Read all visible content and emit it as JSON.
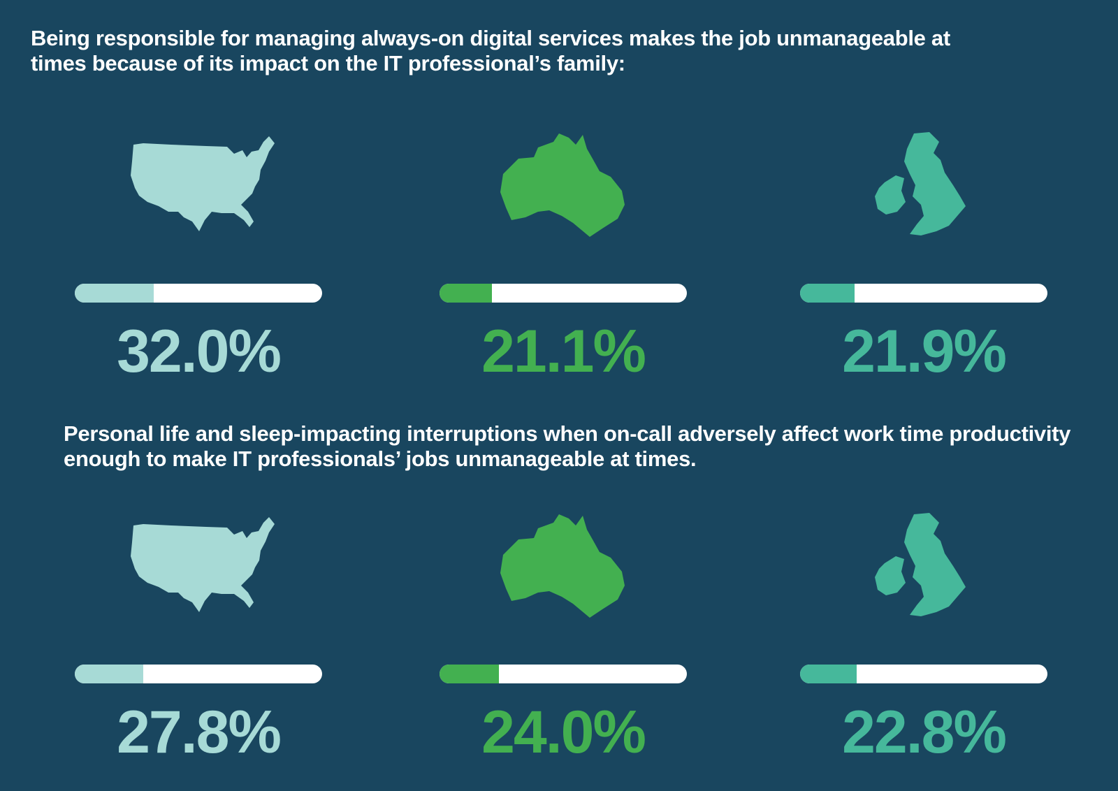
{
  "colors": {
    "background": "#19465f",
    "us": "#a7dad6",
    "au": "#43b050",
    "uk": "#46b89b",
    "track": "#ffffff",
    "heading": "#ffffff"
  },
  "headings": [
    "Being responsible for managing always-on digital services makes the job unmanageable at times because of its impact on the IT professional’s family:",
    "Personal life and sleep-impacting interruptions when on-call adversely affect work time productivity enough to make IT professionals’ jobs unmanageable at times."
  ],
  "chart_data": [
    {
      "type": "bar",
      "title": "Being responsible for managing always-on digital services makes the job unmanageable at times because of its impact on the IT professional’s family:",
      "categories": [
        "us-map-icon",
        "australia-map-icon",
        "uk-ireland-map-icon"
      ],
      "values": [
        32.0,
        21.1,
        21.9
      ],
      "labels": [
        "32.0%",
        "21.1%",
        "21.9%"
      ],
      "ylim": [
        0,
        100
      ]
    },
    {
      "type": "bar",
      "title": "Personal life and sleep-impacting interruptions when on-call adversely affect work time productivity enough to make IT professionals’ jobs unmanageable at times.",
      "categories": [
        "us-map-icon",
        "australia-map-icon",
        "uk-ireland-map-icon"
      ],
      "values": [
        27.8,
        24.0,
        22.8
      ],
      "labels": [
        "27.8%",
        "24.0%",
        "22.8%"
      ],
      "ylim": [
        0,
        100
      ]
    }
  ]
}
